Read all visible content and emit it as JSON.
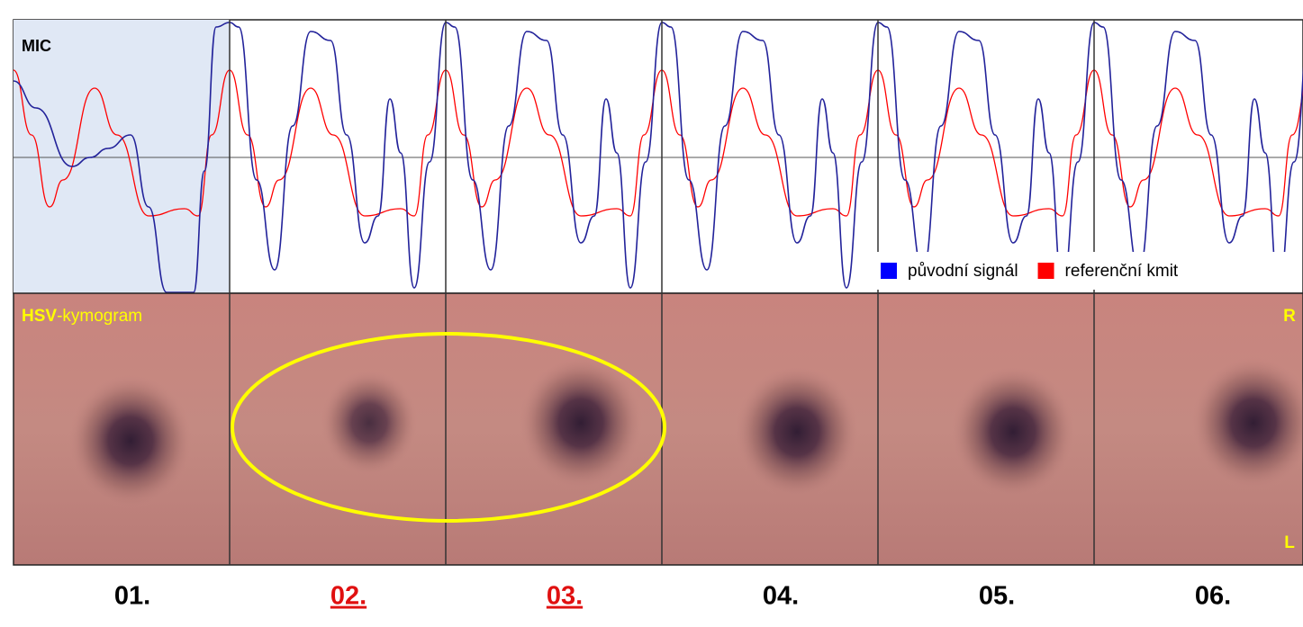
{
  "signal_panel": {
    "label": "MIC",
    "legend": [
      {
        "name": "původní signál",
        "color": "#0000ff"
      },
      {
        "name": "referenční kmit",
        "color": "#ff0000"
      }
    ]
  },
  "kymogram_panel": {
    "label_bold": "HSV",
    "label_rest": "-kymogram",
    "top_marker": "R",
    "bottom_marker": "L"
  },
  "cycles": [
    {
      "label": "01.",
      "highlighted": false
    },
    {
      "label": "02.",
      "highlighted": true
    },
    {
      "label": "03.",
      "highlighted": true
    },
    {
      "label": "04.",
      "highlighted": false
    },
    {
      "label": "05.",
      "highlighted": false
    },
    {
      "label": "06.",
      "highlighted": false
    }
  ]
}
